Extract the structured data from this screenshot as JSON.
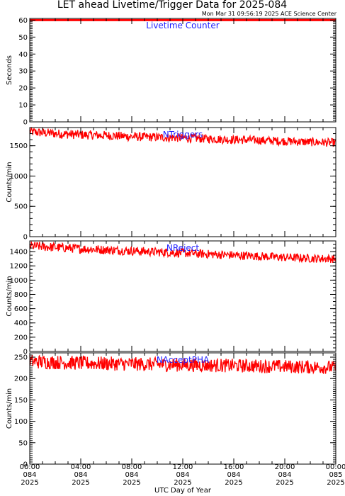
{
  "header": {
    "title": "LET ahead Livetime/Trigger Data for 2025-084",
    "subtitle": "Mon Mar 31 09:56:19 2025 ACE Science Center"
  },
  "x_axis": {
    "label": "UTC Day of Year",
    "ticks": [
      {
        "time": "00:00",
        "day": "084",
        "year": "2025"
      },
      {
        "time": "04:00",
        "day": "084",
        "year": "2025"
      },
      {
        "time": "08:00",
        "day": "084",
        "year": "2025"
      },
      {
        "time": "12:00",
        "day": "084",
        "year": "2025"
      },
      {
        "time": "16:00",
        "day": "084",
        "year": "2025"
      },
      {
        "time": "20:00",
        "day": "084",
        "year": "2025"
      },
      {
        "time": "00:00",
        "day": "085",
        "year": "2025"
      }
    ]
  },
  "colors": {
    "series": "#ff0000",
    "label": "#1d1dff",
    "axis": "#000000"
  },
  "chart_data": [
    {
      "type": "line",
      "label": "Livetime Counter",
      "ylabel": "Seconds",
      "ylim": [
        0,
        61
      ],
      "yticks": [
        0,
        10,
        20,
        30,
        40,
        50,
        60
      ],
      "xlim_hours": [
        0,
        24
      ],
      "series": [
        {
          "x_hours": [
            0,
            24
          ],
          "values": [
            60,
            60
          ]
        }
      ]
    },
    {
      "type": "line",
      "label": "NTriggers",
      "ylabel": "Counts/min",
      "ylim": [
        0,
        1800
      ],
      "yticks": [
        0,
        500,
        1000,
        1500
      ],
      "xlim_hours": [
        0,
        24
      ],
      "series": [
        {
          "x_hours": [
            0,
            2,
            4,
            6,
            8,
            10,
            12,
            14,
            16,
            18,
            20,
            22,
            24
          ],
          "values": [
            1730,
            1700,
            1680,
            1670,
            1650,
            1640,
            1630,
            1615,
            1600,
            1590,
            1575,
            1560,
            1550
          ]
        }
      ]
    },
    {
      "type": "line",
      "label": "NReject",
      "ylabel": "Counts/min",
      "ylim": [
        0,
        1550
      ],
      "yticks": [
        0,
        200,
        400,
        600,
        800,
        1000,
        1200,
        1400
      ],
      "xlim_hours": [
        0,
        24
      ],
      "series": [
        {
          "x_hours": [
            0,
            2,
            4,
            6,
            8,
            10,
            12,
            14,
            16,
            18,
            20,
            22,
            24
          ],
          "values": [
            1480,
            1460,
            1440,
            1425,
            1410,
            1395,
            1380,
            1365,
            1350,
            1335,
            1320,
            1305,
            1300
          ]
        }
      ]
    },
    {
      "type": "line",
      "label": "NAcceptPHA",
      "ylabel": "Counts/min",
      "ylim": [
        0,
        260
      ],
      "yticks": [
        0,
        50,
        100,
        150,
        200,
        250
      ],
      "xlim_hours": [
        0,
        24
      ],
      "series": [
        {
          "x_hours": [
            0,
            2,
            4,
            6,
            8,
            10,
            12,
            14,
            16,
            18,
            20,
            22,
            24
          ],
          "values": [
            240,
            238,
            236,
            235,
            234,
            233,
            232,
            231,
            230,
            229,
            228,
            227,
            226
          ]
        }
      ]
    }
  ]
}
